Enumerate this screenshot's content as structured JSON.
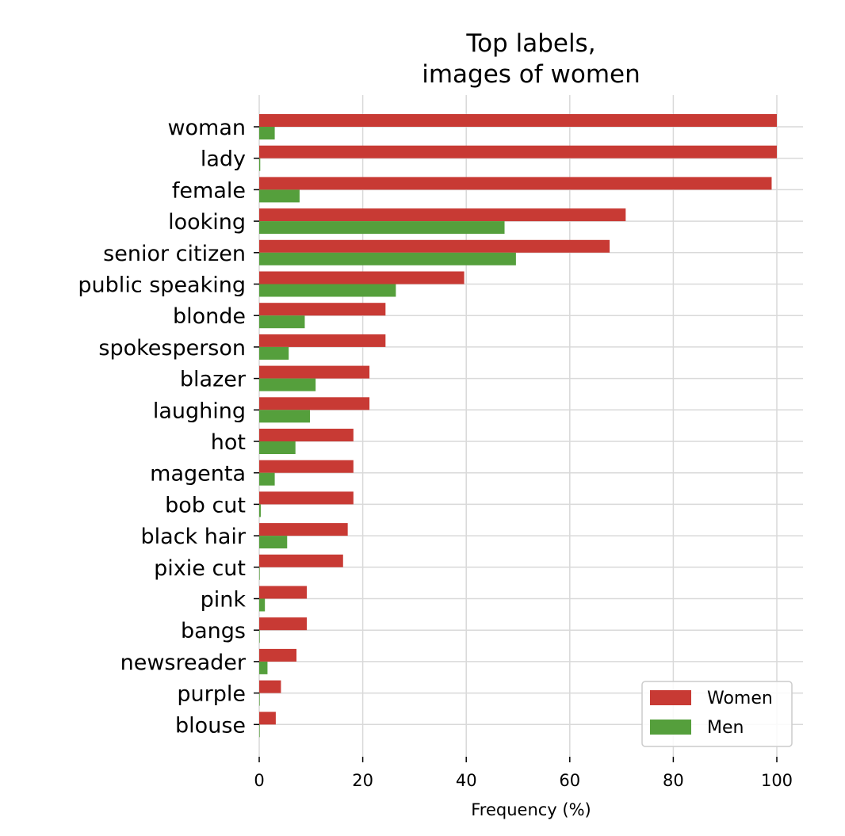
{
  "chart_data": {
    "type": "bar",
    "orientation": "horizontal",
    "title_lines": [
      "Top labels,",
      "images of women"
    ],
    "xlabel": "Frequency (%)",
    "ylabel": "",
    "xlim": [
      0,
      105
    ],
    "xticks": [
      0,
      20,
      40,
      60,
      80,
      100
    ],
    "grid": true,
    "legend_position": "bottom-right",
    "categories": [
      "woman",
      "lady",
      "female",
      "looking",
      "senior citizen",
      "public speaking",
      "blonde",
      "spokesperson",
      "blazer",
      "laughing",
      "hot",
      "magenta",
      "bob cut",
      "black hair",
      "pixie cut",
      "pink",
      "bangs",
      "newsreader",
      "purple",
      "blouse"
    ],
    "series": [
      {
        "name": "Women",
        "color": "#c83a34",
        "values": [
          100,
          100,
          99,
          70.8,
          67.7,
          39.6,
          24.4,
          24.4,
          21.3,
          21.3,
          18.2,
          18.2,
          18.2,
          17.1,
          16.2,
          9.2,
          9.2,
          7.2,
          4.2,
          3.2
        ]
      },
      {
        "name": "Men",
        "color": "#559f3c",
        "values": [
          3,
          0.2,
          7.8,
          47.4,
          49.6,
          26.4,
          8.8,
          5.7,
          10.9,
          9.8,
          7,
          3,
          0.3,
          5.4,
          0.1,
          1.1,
          0.1,
          1.6,
          0.1,
          0.1
        ]
      }
    ]
  }
}
